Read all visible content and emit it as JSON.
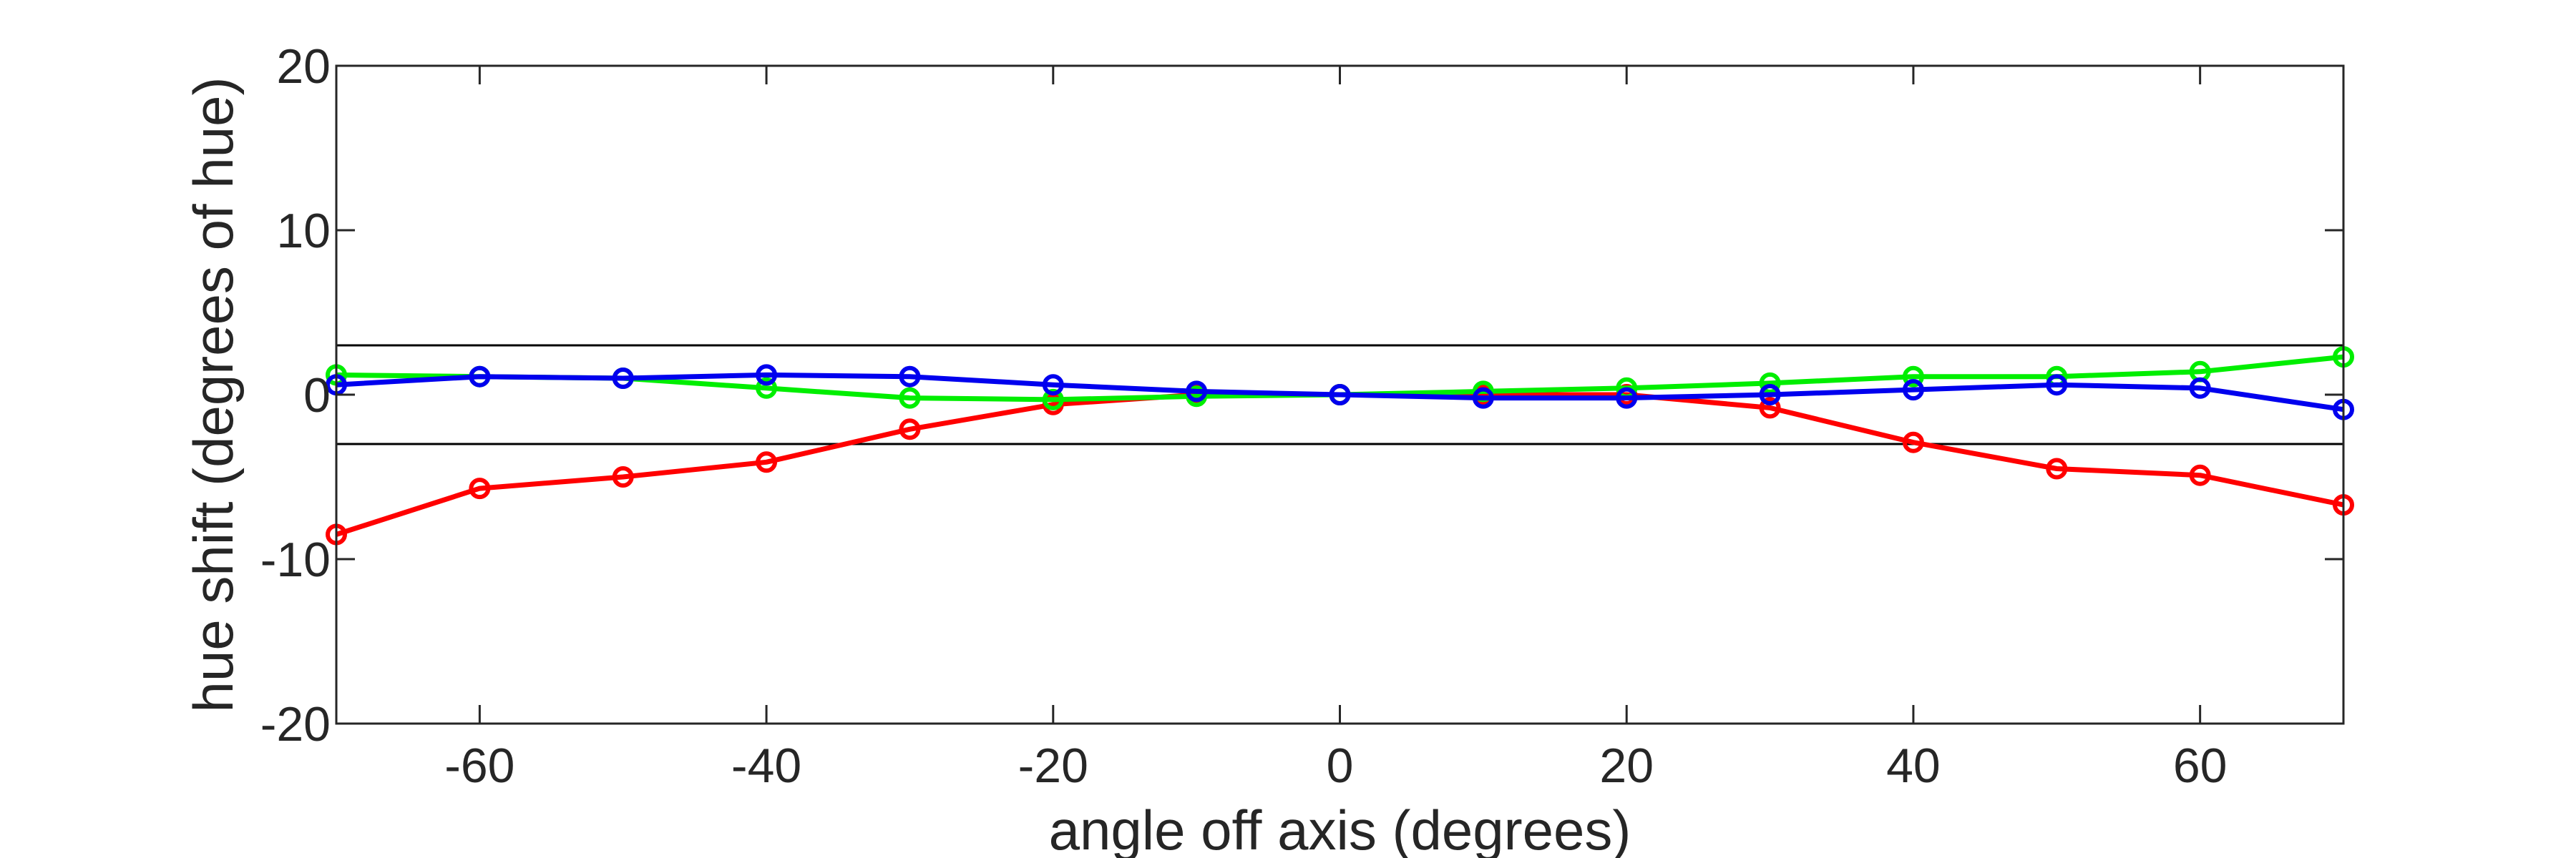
{
  "chart_data": {
    "type": "line",
    "title": "",
    "xlabel": "angle off axis (degrees)",
    "ylabel": "hue shift (degrees of hue)",
    "xlim": [
      -70,
      70
    ],
    "ylim": [
      -20,
      20
    ],
    "xticks": [
      -60,
      -40,
      -20,
      0,
      20,
      40,
      60
    ],
    "yticks": [
      -20,
      -10,
      0,
      10,
      20
    ],
    "xtick_labels": [
      "-60",
      "-40",
      "-20",
      "0",
      "20",
      "40",
      "60"
    ],
    "ytick_labels": [
      "-20",
      "-10",
      "0",
      "10",
      "20"
    ],
    "grid": false,
    "reference_lines_y": [
      3,
      -3
    ],
    "reference_line_color": "#000000",
    "x": [
      -70,
      -60,
      -50,
      -40,
      -30,
      -20,
      -10,
      0,
      10,
      20,
      30,
      40,
      50,
      60,
      70
    ],
    "series": [
      {
        "color": "#ff0000",
        "values": [
          -8.5,
          -5.7,
          -5.0,
          -4.1,
          -2.1,
          -0.6,
          0.0,
          0.0,
          0.0,
          0.0,
          -0.8,
          -2.9,
          -4.5,
          -4.9,
          -6.7
        ]
      },
      {
        "color": "#00ee00",
        "values": [
          1.2,
          1.1,
          1.0,
          0.4,
          -0.2,
          -0.3,
          -0.1,
          0.0,
          0.2,
          0.4,
          0.7,
          1.1,
          1.1,
          1.4,
          2.3
        ]
      },
      {
        "color": "#0000ee",
        "values": [
          0.6,
          1.1,
          1.0,
          1.2,
          1.1,
          0.6,
          0.2,
          0.0,
          -0.2,
          -0.2,
          0.0,
          0.3,
          0.6,
          0.4,
          -0.9
        ]
      }
    ]
  }
}
